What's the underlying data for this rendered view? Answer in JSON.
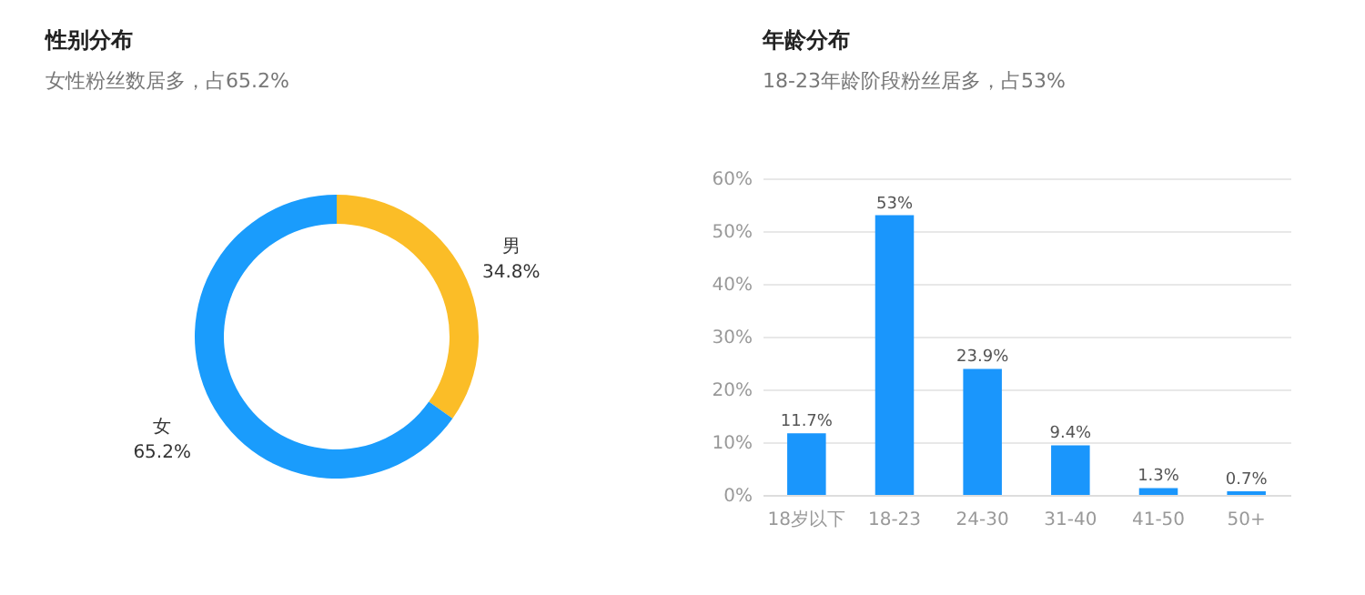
{
  "chart_data": [
    {
      "type": "donut",
      "title": "性别分布",
      "subtitle": "女性粉丝数居多，占65.2%",
      "categories": [
        "男",
        "女"
      ],
      "values": [
        34.8,
        65.2
      ],
      "colors": [
        "#fbbd27",
        "#1a9cfc"
      ],
      "value_labels": [
        "34.8%",
        "65.2%"
      ]
    },
    {
      "type": "bar",
      "title": "年龄分布",
      "subtitle": "18-23年龄阶段粉丝居多，占53%",
      "categories": [
        "18岁以下",
        "18-23",
        "24-30",
        "31-40",
        "41-50",
        "50+"
      ],
      "values": [
        11.7,
        53,
        23.9,
        9.4,
        1.3,
        0.7
      ],
      "color": "#1a96fc",
      "value_labels": [
        "11.7%",
        "53%",
        "23.9%",
        "9.4%",
        "1.3%",
        "0.7%"
      ],
      "ylim": [
        0,
        60
      ],
      "yticks": [
        {
          "value": 0,
          "label": "0%"
        },
        {
          "value": 10,
          "label": "10%"
        },
        {
          "value": 20,
          "label": "20%"
        },
        {
          "value": 30,
          "label": "30%"
        },
        {
          "value": 40,
          "label": "40%"
        },
        {
          "value": 50,
          "label": "50%"
        },
        {
          "value": 60,
          "label": "60%"
        }
      ],
      "grid": "y"
    }
  ]
}
